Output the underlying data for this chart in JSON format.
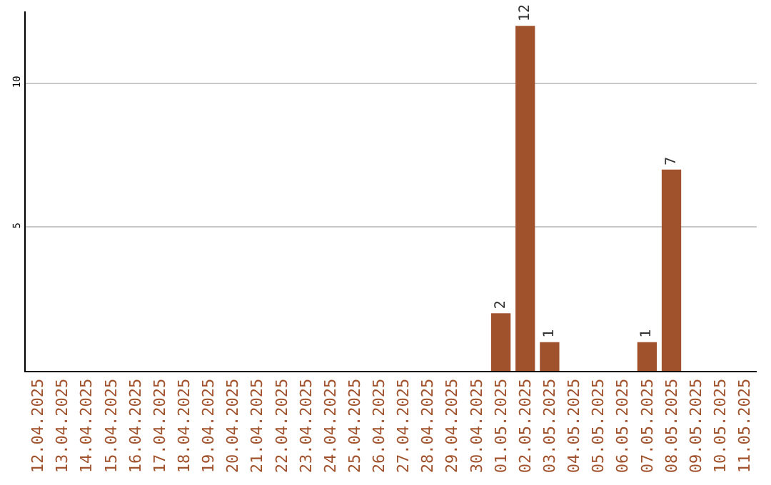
{
  "chart_data": {
    "type": "bar",
    "categories": [
      "12.04.2025",
      "13.04.2025",
      "14.04.2025",
      "15.04.2025",
      "16.04.2025",
      "17.04.2025",
      "18.04.2025",
      "19.04.2025",
      "20.04.2025",
      "21.04.2025",
      "22.04.2025",
      "23.04.2025",
      "24.04.2025",
      "25.04.2025",
      "26.04.2025",
      "27.04.2025",
      "28.04.2025",
      "29.04.2025",
      "30.04.2025",
      "01.05.2025",
      "02.05.2025",
      "03.05.2025",
      "04.05.2025",
      "05.05.2025",
      "06.05.2025",
      "07.05.2025",
      "08.05.2025",
      "09.05.2025",
      "10.05.2025",
      "11.05.2025"
    ],
    "values": [
      0,
      0,
      0,
      0,
      0,
      0,
      0,
      0,
      0,
      0,
      0,
      0,
      0,
      0,
      0,
      0,
      0,
      0,
      0,
      2,
      12,
      1,
      0,
      0,
      0,
      1,
      7,
      0,
      0,
      0
    ],
    "value_labels": [
      null,
      null,
      null,
      null,
      null,
      null,
      null,
      null,
      null,
      null,
      null,
      null,
      null,
      null,
      null,
      null,
      null,
      null,
      null,
      "2",
      "12",
      "1",
      null,
      null,
      null,
      "1",
      "7",
      null,
      null,
      null
    ],
    "color": "#a0522d",
    "ylim": [
      0,
      12.5
    ],
    "yticks": [
      5,
      10
    ],
    "grid": "y",
    "legend": false
  }
}
